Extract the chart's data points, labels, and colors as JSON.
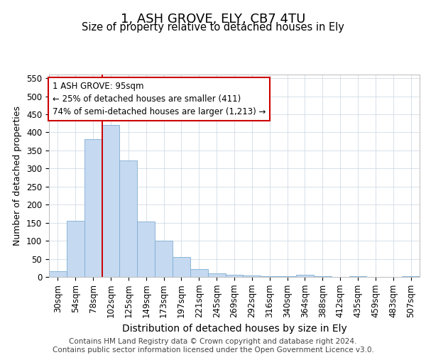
{
  "title": "1, ASH GROVE, ELY, CB7 4TU",
  "subtitle": "Size of property relative to detached houses in Ely",
  "xlabel": "Distribution of detached houses by size in Ely",
  "ylabel": "Number of detached properties",
  "categories": [
    "30sqm",
    "54sqm",
    "78sqm",
    "102sqm",
    "125sqm",
    "149sqm",
    "173sqm",
    "197sqm",
    "221sqm",
    "245sqm",
    "269sqm",
    "292sqm",
    "316sqm",
    "340sqm",
    "364sqm",
    "388sqm",
    "412sqm",
    "435sqm",
    "459sqm",
    "483sqm",
    "507sqm"
  ],
  "values": [
    15,
    155,
    382,
    420,
    322,
    153,
    100,
    55,
    21,
    10,
    5,
    3,
    2,
    2,
    5,
    2,
    0,
    2,
    0,
    0,
    2
  ],
  "bar_color": "#c5d9f0",
  "bar_edge_color": "#7eadd4",
  "vline_color": "#cc0000",
  "vline_x_index": 3,
  "annotation_line1": "1 ASH GROVE: 95sqm",
  "annotation_line2": "← 25% of detached houses are smaller (411)",
  "annotation_line3": "74% of semi-detached houses are larger (1,213) →",
  "annotation_box_facecolor": "#ffffff",
  "annotation_box_edgecolor": "#cc0000",
  "ylim": [
    0,
    560
  ],
  "yticks": [
    0,
    50,
    100,
    150,
    200,
    250,
    300,
    350,
    400,
    450,
    500,
    550
  ],
  "footer_text": "Contains HM Land Registry data © Crown copyright and database right 2024.\nContains public sector information licensed under the Open Government Licence v3.0.",
  "bg_color": "#ffffff",
  "grid_color": "#c8d4e0",
  "title_fontsize": 13,
  "subtitle_fontsize": 10.5,
  "tick_fontsize": 8.5,
  "ylabel_fontsize": 9,
  "xlabel_fontsize": 10,
  "annotation_fontsize": 8.5,
  "footer_fontsize": 7.5
}
